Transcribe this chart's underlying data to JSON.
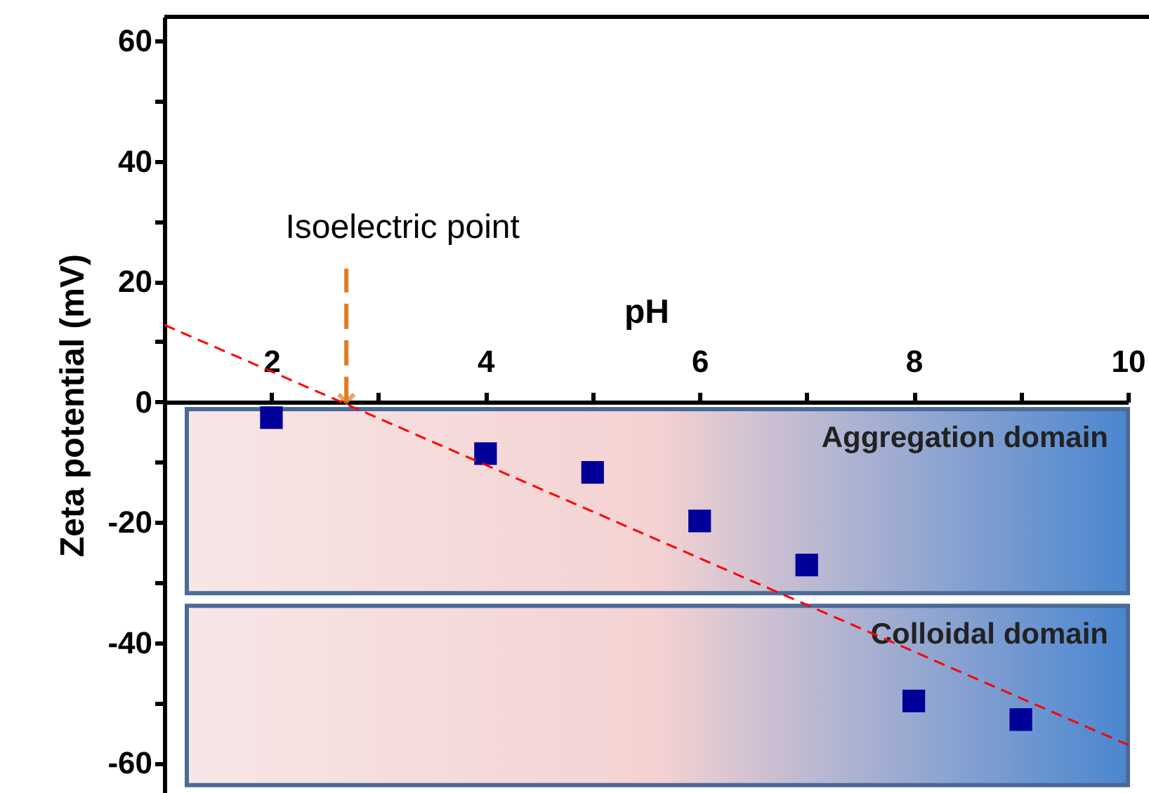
{
  "chart_data": {
    "type": "scatter",
    "xlabel": "pH",
    "ylabel": "Zeta potential (mV)",
    "xlim": [
      1,
      10
    ],
    "ylim": [
      -65,
      64
    ],
    "xticks": [
      2,
      {
        "value": 3,
        "label": null
      },
      4,
      {
        "value": 5,
        "label": null
      },
      6,
      {
        "value": 7,
        "label": null
      },
      8,
      {
        "value": 9,
        "label": null
      },
      10
    ],
    "yticks": [
      -60,
      {
        "value": -50,
        "label": null
      },
      -40,
      {
        "value": -30,
        "label": null
      },
      -20,
      {
        "value": -10,
        "label": null
      },
      0,
      {
        "value": 10,
        "label": null
      },
      20,
      {
        "value": 30,
        "label": null
      },
      40,
      {
        "value": 50,
        "label": null
      },
      60
    ],
    "bands": [
      {
        "axis": "y",
        "from": -1.2,
        "to": -31.8,
        "label": "Aggregation domain",
        "color": "#4a6a98"
      },
      {
        "axis": "y",
        "from": -33.9,
        "to": -63.7,
        "label": "Colloidal domain",
        "color": "#4a6a98"
      }
    ],
    "series": [
      {
        "type": "scatter",
        "color": "#000099",
        "marker": "square",
        "x": [
          2,
          4,
          5,
          6,
          7,
          8,
          9
        ],
        "values": [
          -2.6,
          -8.6,
          -11.7,
          -19.8,
          -27.1,
          -49.7,
          -52.8
        ]
      },
      {
        "type": "line",
        "color": "#ff0000",
        "line_style": "dashed",
        "marker": "none",
        "x": [
          1,
          10
        ],
        "values": [
          12.8,
          -57
        ]
      }
    ],
    "annotations": [
      {
        "text": "Isoelectric point",
        "x": 2.7,
        "y": 0
      }
    ],
    "grid": false
  }
}
